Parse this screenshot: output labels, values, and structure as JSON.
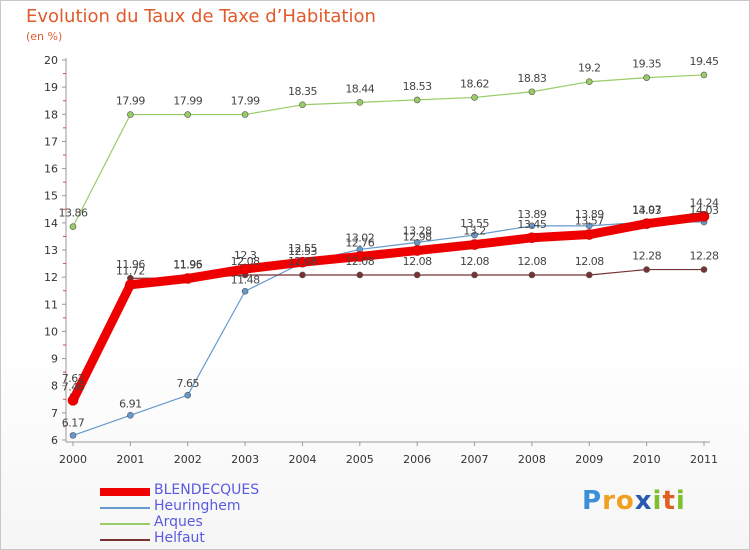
{
  "header": {
    "title": "Evolution du Taux de Taxe d’Habitation",
    "subtitle": "(en %)"
  },
  "brand": {
    "letters": [
      {
        "ch": "P",
        "color": "#3a8fd8"
      },
      {
        "ch": "r",
        "color": "#f0a020"
      },
      {
        "ch": "o",
        "color": "#f0a020"
      },
      {
        "ch": "x",
        "color": "#2a5ab0"
      },
      {
        "ch": "i",
        "color": "#80c030"
      },
      {
        "ch": "t",
        "color": "#e06020"
      },
      {
        "ch": "i",
        "color": "#80c030"
      }
    ]
  },
  "chart_data": {
    "type": "line",
    "x": [
      "2000",
      "2001",
      "2002",
      "2003",
      "2004",
      "2005",
      "2006",
      "2007",
      "2008",
      "2009",
      "2010",
      "2011"
    ],
    "ylim": [
      6,
      20
    ],
    "yticks": [
      "6",
      "7",
      "8",
      "9",
      "10",
      "11",
      "12",
      "13",
      "14",
      "15",
      "16",
      "17",
      "18",
      "19",
      "20"
    ],
    "grid": false,
    "legend_position": "bottom-left",
    "series": [
      {
        "name": "BLENDECQUES",
        "color": "#ee0000",
        "values": [
          7.46,
          11.72,
          11.95,
          12.3,
          12.55,
          12.76,
          12.98,
          13.2,
          13.45,
          13.57,
          13.97,
          14.24
        ],
        "labels": [
          "7.46",
          "11.72",
          "11.95",
          "12.3",
          "12.55",
          "12.76",
          "12.98",
          "13.2",
          "13.45",
          "13.57",
          "13.97",
          "14.24"
        ]
      },
      {
        "name": "Heuringhem",
        "color": "#6699cc",
        "values": [
          6.17,
          6.91,
          7.65,
          11.48,
          12.53,
          13.02,
          13.28,
          13.55,
          13.89,
          13.89,
          14.03,
          14.03
        ],
        "labels": [
          "6.17",
          "6.91",
          "7.65",
          "11.48",
          "12.53",
          "13.02",
          "13.28",
          "13.55",
          "13.89",
          "13.89",
          "14.03",
          "14.03"
        ]
      },
      {
        "name": "Arques",
        "color": "#99cc66",
        "values": [
          13.86,
          17.99,
          17.99,
          17.99,
          18.35,
          18.44,
          18.53,
          18.62,
          18.83,
          19.2,
          19.35,
          19.45
        ],
        "labels": [
          "13.86",
          "17.99",
          "17.99",
          "17.99",
          "18.35",
          "18.44",
          "18.53",
          "18.62",
          "18.83",
          "19.2",
          "19.35",
          "19.45"
        ]
      },
      {
        "name": "Helfaut",
        "color": "#773333",
        "values": [
          7.62,
          11.96,
          11.96,
          12.08,
          12.08,
          12.08,
          12.08,
          12.08,
          12.08,
          12.08,
          12.28,
          12.28
        ],
        "labels": [
          "7.62",
          "11.96",
          "11.96",
          "12.08",
          "12.08",
          "12.08",
          "12.08",
          "12.08",
          "12.08",
          "12.08",
          "12.28",
          "12.28"
        ]
      }
    ]
  }
}
